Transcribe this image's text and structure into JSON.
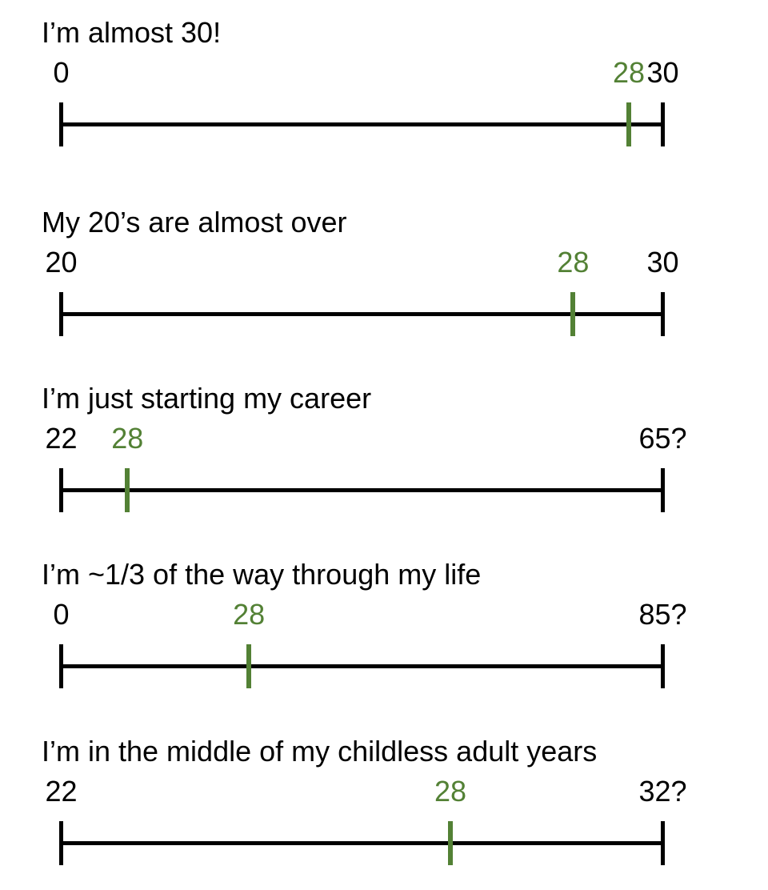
{
  "colors": {
    "background": "#ffffff",
    "text": "#000000",
    "marker_green": "#538135"
  },
  "chart_data": {
    "type": "line",
    "description": "Five horizontal number-line timelines, each showing age 28 marked in green relative to a different framing of life stages",
    "timelines": [
      {
        "title": "I’m almost 30!",
        "start_label": "0",
        "marker_label": "28",
        "end_label": "30",
        "start_value": 0,
        "marker_value": 28,
        "end_value": 30,
        "marker_frac": 0.9435
      },
      {
        "title": "My 20’s are almost over",
        "start_label": "20",
        "marker_label": "28",
        "end_label": "30",
        "start_value": 20,
        "marker_value": 28,
        "end_value": 30,
        "marker_frac": 0.851
      },
      {
        "title": "I’m just starting my career",
        "start_label": "22",
        "marker_label": "28",
        "end_label": "65?",
        "start_value": 22,
        "marker_value": 28,
        "end_value": 65,
        "marker_frac": 0.11
      },
      {
        "title": "I’m ~1/3 of the way through my life",
        "start_label": "0",
        "marker_label": "28",
        "end_label": "85?",
        "start_value": 0,
        "marker_value": 28,
        "end_value": 85,
        "marker_frac": 0.312
      },
      {
        "title": "I’m in the middle of my childless adult years",
        "start_label": "22",
        "marker_label": "28",
        "end_label": "32?",
        "start_value": 22,
        "marker_value": 28,
        "end_value": 32,
        "marker_frac": 0.647
      }
    ]
  }
}
